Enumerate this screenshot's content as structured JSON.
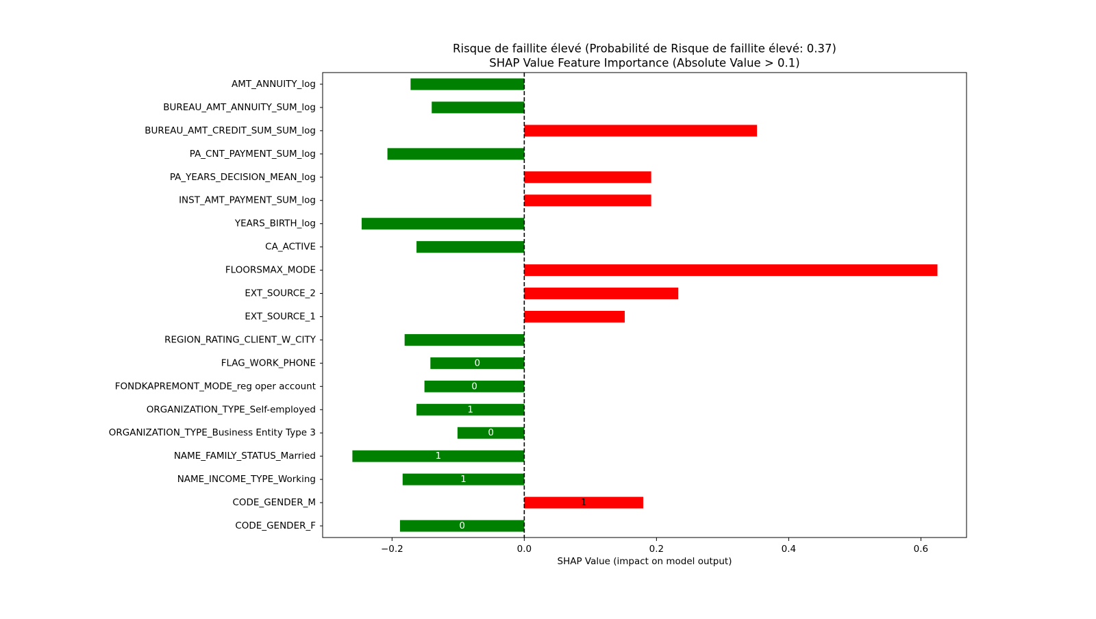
{
  "chart_data": {
    "type": "barh",
    "title": [
      "Risque de faillite élevé (Probabilité de Risque de faillite élevé: 0.37)",
      "SHAP Value Feature Importance (Absolute Value > 0.1)"
    ],
    "x_label": "SHAP Value (impact on model output)",
    "categories": [
      "AMT_ANNUITY_log",
      "BUREAU_AMT_ANNUITY_SUM_log",
      "BUREAU_AMT_CREDIT_SUM_SUM_log",
      "PA_CNT_PAYMENT_SUM_log",
      "PA_YEARS_DECISION_MEAN_log",
      "INST_AMT_PAYMENT_SUM_log",
      "YEARS_BIRTH_log",
      "CA_ACTIVE",
      "FLOORSMAX_MODE",
      "EXT_SOURCE_2",
      "EXT_SOURCE_1",
      "REGION_RATING_CLIENT_W_CITY",
      "FLAG_WORK_PHONE",
      "FONDKAPREMONT_MODE_reg oper account",
      "ORGANIZATION_TYPE_Self-employed",
      "ORGANIZATION_TYPE_Business Entity Type 3",
      "NAME_FAMILY_STATUS_Married",
      "NAME_INCOME_TYPE_Working",
      "CODE_GENDER_M",
      "CODE_GENDER_F"
    ],
    "values": [
      -0.172,
      -0.14,
      0.352,
      -0.207,
      0.192,
      0.192,
      -0.246,
      -0.163,
      0.625,
      0.233,
      0.152,
      -0.181,
      -0.142,
      -0.151,
      -0.163,
      -0.101,
      -0.26,
      -0.184,
      0.18,
      -0.188
    ],
    "feature_values": [
      null,
      null,
      null,
      null,
      null,
      null,
      null,
      null,
      null,
      null,
      null,
      null,
      0,
      0,
      1,
      0,
      1,
      1,
      1,
      0
    ],
    "positive_color": "#ff0000",
    "negative_color": "#008000",
    "vline": 0,
    "xlim": [
      -0.305,
      0.669
    ],
    "xticks": [
      {
        "value": -0.2,
        "label": "−0.2"
      },
      {
        "value": 0,
        "label": "0.0"
      },
      0.2,
      0.4,
      0.6
    ]
  }
}
